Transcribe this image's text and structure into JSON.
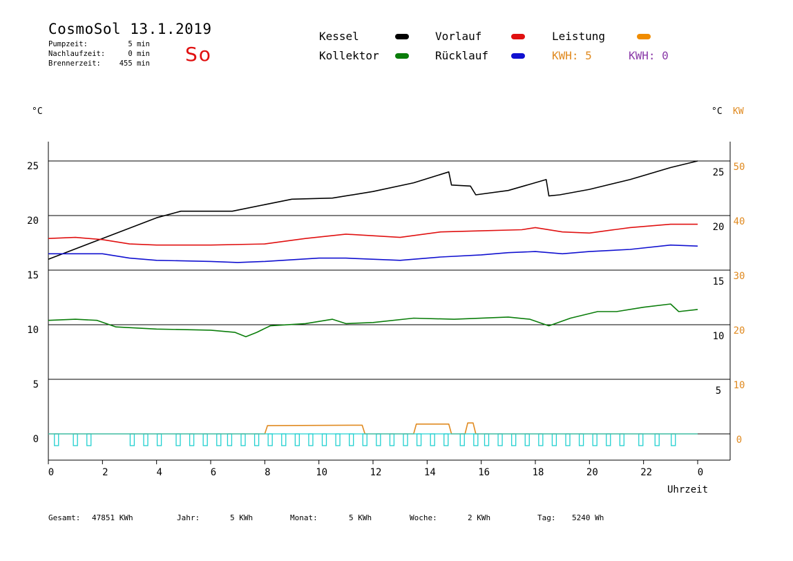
{
  "header": {
    "title": "CosmoSol 13.1.2019",
    "stats": [
      {
        "label": "Pumpzeit:",
        "value": "5 min"
      },
      {
        "label": "Nachlaufzeit:",
        "value": "0 min"
      },
      {
        "label": "Brennerzeit:",
        "value": "455 min"
      }
    ],
    "day_code": "So"
  },
  "legend": {
    "items": [
      {
        "label": "Kessel",
        "color": "#000000"
      },
      {
        "label": "Vorlauf",
        "color": "#e01010"
      },
      {
        "label": "Leistung",
        "color": "#f08c00"
      },
      {
        "label": "Kollektor",
        "color": "#0a7d0a"
      },
      {
        "label": "Rücklauf",
        "color": "#1010d0"
      }
    ],
    "kwh_left": "KWH: 5",
    "kwh_right": "KWH: 0",
    "kwh_left_color": "#e08a20",
    "kwh_right_color": "#8a3aa8"
  },
  "axes": {
    "left_unit": "°C",
    "right_unit_c": "°C",
    "right_unit_kw": "KW",
    "x_label": "Uhrzeit"
  },
  "footer": [
    {
      "label": "Gesamt:",
      "value": "47851 KWh"
    },
    {
      "label": "Jahr:",
      "value": "5 KWh"
    },
    {
      "label": "Monat:",
      "value": "5 KWh"
    },
    {
      "label": "Woche:",
      "value": "2 KWh"
    },
    {
      "label": "Tag:",
      "value": "5240 Wh"
    }
  ],
  "chart_data": {
    "type": "line",
    "title": "CosmoSol 13.1.2019",
    "xlabel": "Uhrzeit",
    "ylabel": "°C",
    "y2label": "KW",
    "xlim": [
      0,
      24
    ],
    "ylim": [
      -1,
      28
    ],
    "y2lim": [
      -2,
      56
    ],
    "grid": true,
    "x_ticks": [
      "0",
      "2",
      "4",
      "6",
      "8",
      "10",
      "12",
      "14",
      "16",
      "18",
      "20",
      "22",
      "0"
    ],
    "y_ticks_left": [
      "0",
      "5",
      "10",
      "15",
      "20",
      "25"
    ],
    "y_ticks_right_c": [
      "5",
      "10",
      "15",
      "20",
      "25"
    ],
    "y_ticks_right_kw": [
      "0",
      "10",
      "20",
      "30",
      "40",
      "50"
    ],
    "series": [
      {
        "name": "Kessel",
        "color": "#000000",
        "axis": "left",
        "x": [
          0,
          2,
          4,
          4.9,
          6.8,
          8,
          9,
          10.5,
          12,
          13.5,
          14.8,
          14.9,
          15.6,
          15.8,
          17,
          18.4,
          18.5,
          18.9,
          20,
          21.5,
          23,
          24
        ],
        "y": [
          16,
          17.9,
          19.8,
          20.4,
          20.4,
          21,
          21.5,
          21.6,
          22.2,
          23,
          24,
          22.8,
          22.7,
          21.9,
          22.3,
          23.3,
          21.8,
          21.9,
          22.4,
          23.3,
          24.4,
          25
        ]
      },
      {
        "name": "Vorlauf",
        "color": "#e01010",
        "axis": "left",
        "x": [
          0,
          1,
          2,
          3,
          4,
          6,
          8,
          9.5,
          11,
          13,
          14.5,
          16,
          17.5,
          18,
          19,
          20,
          21.5,
          23,
          24
        ],
        "y": [
          17.9,
          18,
          17.8,
          17.4,
          17.3,
          17.3,
          17.4,
          17.9,
          18.3,
          18,
          18.5,
          18.6,
          18.7,
          18.9,
          18.5,
          18.4,
          18.9,
          19.2,
          19.2
        ]
      },
      {
        "name": "Rücklauf",
        "color": "#1010d0",
        "axis": "left",
        "x": [
          0,
          2,
          3,
          4,
          6,
          7,
          8,
          10,
          11,
          13,
          14.5,
          16,
          17,
          18,
          19,
          20,
          21.5,
          23,
          24
        ],
        "y": [
          16.5,
          16.5,
          16.1,
          15.9,
          15.8,
          15.7,
          15.8,
          16.1,
          16.1,
          15.9,
          16.2,
          16.4,
          16.6,
          16.7,
          16.5,
          16.7,
          16.9,
          17.3,
          17.2
        ]
      },
      {
        "name": "Kollektor",
        "color": "#0a7d0a",
        "axis": "left",
        "x": [
          0,
          1,
          1.8,
          2.5,
          4,
          6,
          6.9,
          7.3,
          7.7,
          8.2,
          9.5,
          10.5,
          11,
          12,
          13.5,
          15,
          17,
          17.8,
          18.5,
          19.3,
          20.3,
          21,
          22,
          23,
          23.3,
          24
        ],
        "y": [
          10.4,
          10.5,
          10.4,
          9.8,
          9.6,
          9.5,
          9.3,
          8.9,
          9.3,
          9.9,
          10.1,
          10.5,
          10.1,
          10.2,
          10.6,
          10.5,
          10.7,
          10.5,
          9.9,
          10.6,
          11.2,
          11.2,
          11.6,
          11.9,
          11.2,
          11.4
        ]
      },
      {
        "name": "Leistung",
        "color": "#e08a20",
        "axis": "right",
        "x": [
          0,
          8,
          8.1,
          11.6,
          11.7,
          13.5,
          13.6,
          14.8,
          14.9,
          15.4,
          15.5,
          15.7,
          15.8,
          24
        ],
        "y": [
          0,
          0,
          1.5,
          1.6,
          0,
          0,
          1.8,
          1.8,
          0,
          0,
          2.0,
          2.0,
          0,
          0
        ]
      },
      {
        "name": "Pumpe",
        "color": "#20d0d0",
        "axis": "left",
        "x": [
          0,
          24
        ],
        "y": [
          0,
          0
        ]
      }
    ]
  }
}
